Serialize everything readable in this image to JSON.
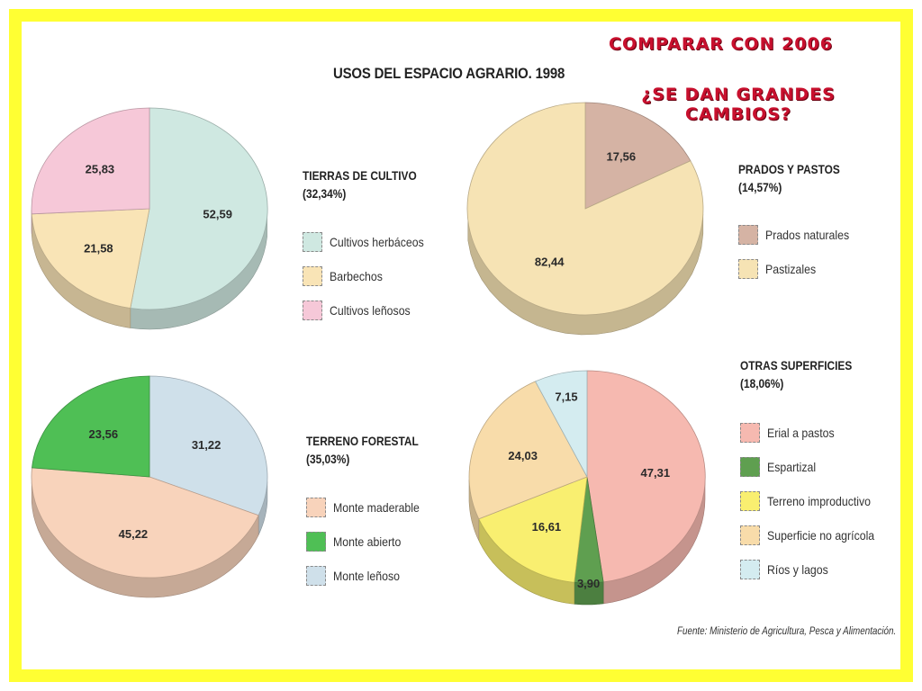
{
  "title": "USOS DEL ESPACIO AGRARIO. 1998",
  "notes": {
    "compare": "COMPARAR CON 2006",
    "question": "¿SE DAN GRANDES CAMBIOS?"
  },
  "source": "Fuente: Ministerio de Agricultura, Pesca y Alimentación.",
  "chart_data": [
    {
      "type": "pie",
      "title": "TIERRAS DE CULTIVO",
      "subtitle": "(32,34%)",
      "slices": [
        {
          "name": "Cultivos herbáceos",
          "value": 52.59,
          "label": "52,59",
          "color": "#cfe8e1"
        },
        {
          "name": "Barbechos",
          "value": 21.58,
          "label": "21,58",
          "color": "#f9e4b6"
        },
        {
          "name": "Cultivos leñosos",
          "value": 25.83,
          "label": "25,83",
          "color": "#f6c8d8"
        }
      ]
    },
    {
      "type": "pie",
      "title": "PRADOS Y PASTOS",
      "subtitle": "(14,57%)",
      "slices": [
        {
          "name": "Prados naturales",
          "value": 17.56,
          "label": "17,56",
          "color": "#d5b3a4"
        },
        {
          "name": "Pastizales",
          "value": 82.44,
          "label": "82,44",
          "color": "#f6e3b4"
        }
      ]
    },
    {
      "type": "pie",
      "title": "TERRENO FORESTAL",
      "subtitle": "(35,03%)",
      "slices": [
        {
          "name": "Monte maderable",
          "value": 45.22,
          "label": "45,22",
          "color": "#f8d3bb"
        },
        {
          "name": "Monte abierto",
          "value": 23.56,
          "label": "23,56",
          "color": "#4fbf55"
        },
        {
          "name": "Monte leñoso",
          "value": 31.22,
          "label": "31,22",
          "color": "#cfe0ea"
        }
      ]
    },
    {
      "type": "pie",
      "title": "OTRAS SUPERFICIES",
      "subtitle": "(18,06%)",
      "slices": [
        {
          "name": "Erial a pastos",
          "value": 47.31,
          "label": "47,31",
          "color": "#f6b9b0"
        },
        {
          "name": "Espartizal",
          "value": 3.9,
          "label": "3,90",
          "color": "#5f9f50"
        },
        {
          "name": "Terreno improductivo",
          "value": 16.61,
          "label": "16,61",
          "color": "#f9ef70"
        },
        {
          "name": "Superficie no agrícola",
          "value": 24.03,
          "label": "24,03",
          "color": "#f8dcaa"
        },
        {
          "name": "Ríos y lagos",
          "value": 7.15,
          "label": "7,15",
          "color": "#d4ecf0"
        }
      ]
    }
  ]
}
